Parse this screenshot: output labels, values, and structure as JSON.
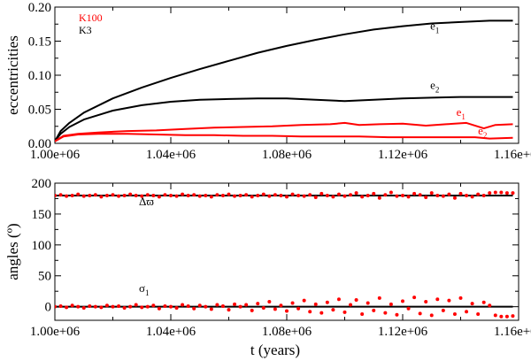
{
  "figure": {
    "panels": [
      "top",
      "bottom"
    ],
    "colors": {
      "K3": "#000000",
      "K100": "#ff0000"
    }
  },
  "chart_data": [
    {
      "id": "top",
      "type": "line",
      "title": "",
      "xlabel": "",
      "ylabel": "eccentricities",
      "xlim": [
        1000000,
        1160000
      ],
      "ylim": [
        0,
        0.2
      ],
      "x_ticks": [
        1000000,
        1040000,
        1080000,
        1120000,
        1160000
      ],
      "x_tick_labels": [
        "1.00e+06",
        "1.04e+06",
        "1.08e+06",
        "1.12e+06",
        "1.16e+06"
      ],
      "y_ticks": [
        0,
        0.05,
        0.1,
        0.15,
        0.2
      ],
      "y_tick_labels": [
        "0.00",
        "0.05",
        "0.10",
        "0.15",
        "0.20"
      ],
      "legend": {
        "placement": "top-left",
        "entries": [
          {
            "label": "K100",
            "color": "#ff0000"
          },
          {
            "label": "K3",
            "color": "#000000"
          }
        ]
      },
      "series": [
        {
          "name": "K3 e1",
          "color": "#000000",
          "x": [
            1000000,
            1002000,
            1005000,
            1010000,
            1020000,
            1030000,
            1040000,
            1050000,
            1060000,
            1070000,
            1080000,
            1090000,
            1100000,
            1110000,
            1120000,
            1130000,
            1140000,
            1150000,
            1158000
          ],
          "y": [
            0.003,
            0.018,
            0.03,
            0.045,
            0.066,
            0.082,
            0.096,
            0.109,
            0.121,
            0.133,
            0.143,
            0.152,
            0.16,
            0.167,
            0.172,
            0.176,
            0.178,
            0.18,
            0.18
          ]
        },
        {
          "name": "K3 e2",
          "color": "#000000",
          "x": [
            1000000,
            1002000,
            1005000,
            1010000,
            1020000,
            1030000,
            1040000,
            1050000,
            1060000,
            1070000,
            1080000,
            1090000,
            1100000,
            1110000,
            1120000,
            1130000,
            1140000,
            1150000,
            1158000
          ],
          "y": [
            0.003,
            0.014,
            0.024,
            0.035,
            0.048,
            0.056,
            0.061,
            0.064,
            0.065,
            0.066,
            0.066,
            0.064,
            0.062,
            0.064,
            0.066,
            0.067,
            0.068,
            0.068,
            0.068
          ]
        },
        {
          "name": "K100 e1",
          "color": "#ff0000",
          "x": [
            1000000,
            1003000,
            1008000,
            1015000,
            1025000,
            1035000,
            1045000,
            1055000,
            1065000,
            1075000,
            1085000,
            1095000,
            1100000,
            1105000,
            1112000,
            1120000,
            1128000,
            1135000,
            1142000,
            1148000,
            1152000,
            1158000
          ],
          "y": [
            0.003,
            0.011,
            0.014,
            0.016,
            0.018,
            0.019,
            0.021,
            0.023,
            0.024,
            0.025,
            0.027,
            0.028,
            0.03,
            0.027,
            0.028,
            0.029,
            0.026,
            0.028,
            0.03,
            0.022,
            0.027,
            0.028
          ]
        },
        {
          "name": "K100 e2",
          "color": "#ff0000",
          "x": [
            1000000,
            1003000,
            1008000,
            1015000,
            1025000,
            1035000,
            1045000,
            1055000,
            1065000,
            1075000,
            1085000,
            1095000,
            1105000,
            1115000,
            1125000,
            1135000,
            1145000,
            1150000,
            1158000
          ],
          "y": [
            0.003,
            0.01,
            0.013,
            0.014,
            0.014,
            0.013,
            0.012,
            0.012,
            0.011,
            0.011,
            0.01,
            0.01,
            0.01,
            0.009,
            0.009,
            0.009,
            0.009,
            0.007,
            0.008
          ]
        }
      ],
      "annotations": [
        {
          "label": "e",
          "sub": "1",
          "x": 1129500,
          "y": 0.167,
          "color": "#000000"
        },
        {
          "label": "e",
          "sub": "2",
          "x": 1129500,
          "y": 0.08,
          "color": "#000000"
        },
        {
          "label": "e",
          "sub": "1",
          "x": 1138500,
          "y": 0.04,
          "color": "#ff0000"
        },
        {
          "label": "e",
          "sub": "2",
          "x": 1146000,
          "y": 0.013,
          "color": "#ff0000"
        }
      ]
    },
    {
      "id": "bottom",
      "type": "scatter",
      "title": "",
      "xlabel": "t (years)",
      "ylabel": "angles (º)",
      "xlim": [
        1000000,
        1160000
      ],
      "ylim": [
        -22,
        200
      ],
      "x_ticks": [
        1000000,
        1040000,
        1080000,
        1120000,
        1160000
      ],
      "x_tick_labels": [
        "1.00e+06",
        "1.04e+06",
        "1.08e+06",
        "1.12e+06",
        "1.16e+06"
      ],
      "y_ticks": [
        0,
        50,
        100,
        150,
        200
      ],
      "y_tick_labels": [
        "0",
        "50",
        "100",
        "150",
        "200"
      ],
      "series": [
        {
          "name": "K3 Δϖ",
          "kind": "line",
          "color": "#000000",
          "x": [
            1000000,
            1158000
          ],
          "y": [
            180,
            180
          ]
        },
        {
          "name": "K3 σ1",
          "kind": "line",
          "color": "#000000",
          "x": [
            1000000,
            1158000
          ],
          "y": [
            0,
            0
          ]
        },
        {
          "name": "K100 Δϖ",
          "kind": "points",
          "color": "#ff0000",
          "x": [
            1000000,
            1002000,
            1004000,
            1006000,
            1008000,
            1010000,
            1012000,
            1014000,
            1016000,
            1018000,
            1020000,
            1022000,
            1024000,
            1026000,
            1028000,
            1030000,
            1032000,
            1034000,
            1036000,
            1038000,
            1040000,
            1042000,
            1044000,
            1046000,
            1048000,
            1050000,
            1052000,
            1054000,
            1056000,
            1058000,
            1060000,
            1062000,
            1064000,
            1066000,
            1068000,
            1070000,
            1072000,
            1074000,
            1076000,
            1078000,
            1080000,
            1082000,
            1084000,
            1086000,
            1088000,
            1090000,
            1092000,
            1094000,
            1096000,
            1098000,
            1100000,
            1102000,
            1104000,
            1106000,
            1108000,
            1110000,
            1112000,
            1114000,
            1116000,
            1118000,
            1120000,
            1122000,
            1124000,
            1126000,
            1128000,
            1130000,
            1132000,
            1134000,
            1136000,
            1138000,
            1140000,
            1142000,
            1144000,
            1146000,
            1148000,
            1150000,
            1152000,
            1154000,
            1156000,
            1158000
          ],
          "y": [
            180,
            181,
            179,
            180,
            182,
            179,
            180,
            181,
            178,
            180,
            181,
            179,
            180,
            182,
            180,
            179,
            181,
            180,
            178,
            181,
            180,
            179,
            182,
            180,
            181,
            179,
            180,
            178,
            181,
            180,
            182,
            179,
            180,
            181,
            178,
            180,
            182,
            179,
            181,
            180,
            178,
            182,
            180,
            179,
            181,
            177,
            183,
            180,
            178,
            182,
            179,
            181,
            184,
            178,
            180,
            183,
            176,
            181,
            185,
            179,
            180,
            178,
            183,
            181,
            177,
            184,
            180,
            179,
            182,
            176,
            183,
            180,
            178,
            182,
            180,
            184,
            185,
            185,
            184,
            184
          ]
        },
        {
          "name": "K100 σ1",
          "kind": "points",
          "color": "#ff0000",
          "x": [
            1000000,
            1002000,
            1004000,
            1006000,
            1008000,
            1010000,
            1012000,
            1014000,
            1016000,
            1018000,
            1020000,
            1022000,
            1024000,
            1026000,
            1028000,
            1030000,
            1032000,
            1034000,
            1036000,
            1038000,
            1040000,
            1042000,
            1044000,
            1046000,
            1048000,
            1050000,
            1052000,
            1054000,
            1056000,
            1058000,
            1060000,
            1062000,
            1064000,
            1066000,
            1068000,
            1070000,
            1072000,
            1074000,
            1076000,
            1078000,
            1080000,
            1082000,
            1084000,
            1086000,
            1088000,
            1090000,
            1092000,
            1094000,
            1096000,
            1098000,
            1100000,
            1102000,
            1104000,
            1106000,
            1108000,
            1110000,
            1112000,
            1114000,
            1116000,
            1118000,
            1120000,
            1122000,
            1124000,
            1126000,
            1128000,
            1130000,
            1132000,
            1134000,
            1136000,
            1138000,
            1140000,
            1142000,
            1144000,
            1146000,
            1148000,
            1150000,
            1152000,
            1154000,
            1156000,
            1158000
          ],
          "y": [
            0,
            1,
            -1,
            2,
            0,
            -2,
            1,
            0,
            -1,
            2,
            0,
            1,
            -2,
            0,
            3,
            -1,
            0,
            2,
            -3,
            1,
            0,
            -2,
            3,
            1,
            -3,
            2,
            0,
            -4,
            3,
            1,
            -5,
            4,
            0,
            3,
            -6,
            5,
            -2,
            8,
            -4,
            2,
            -7,
            6,
            -3,
            10,
            -8,
            4,
            -10,
            7,
            -5,
            12,
            -9,
            3,
            11,
            -12,
            6,
            -6,
            14,
            -10,
            4,
            -13,
            9,
            -3,
            15,
            -11,
            8,
            -14,
            12,
            -6,
            10,
            -12,
            14,
            -8,
            5,
            -12,
            7,
            2,
            -14,
            -16,
            -16,
            -15
          ]
        }
      ],
      "annotations": [
        {
          "label": "Δϖ",
          "x": 1029000,
          "y": 164,
          "color": "#000000"
        },
        {
          "label": "σ",
          "sub": "1",
          "x": 1029000,
          "y": 24,
          "color": "#000000"
        }
      ]
    }
  ]
}
